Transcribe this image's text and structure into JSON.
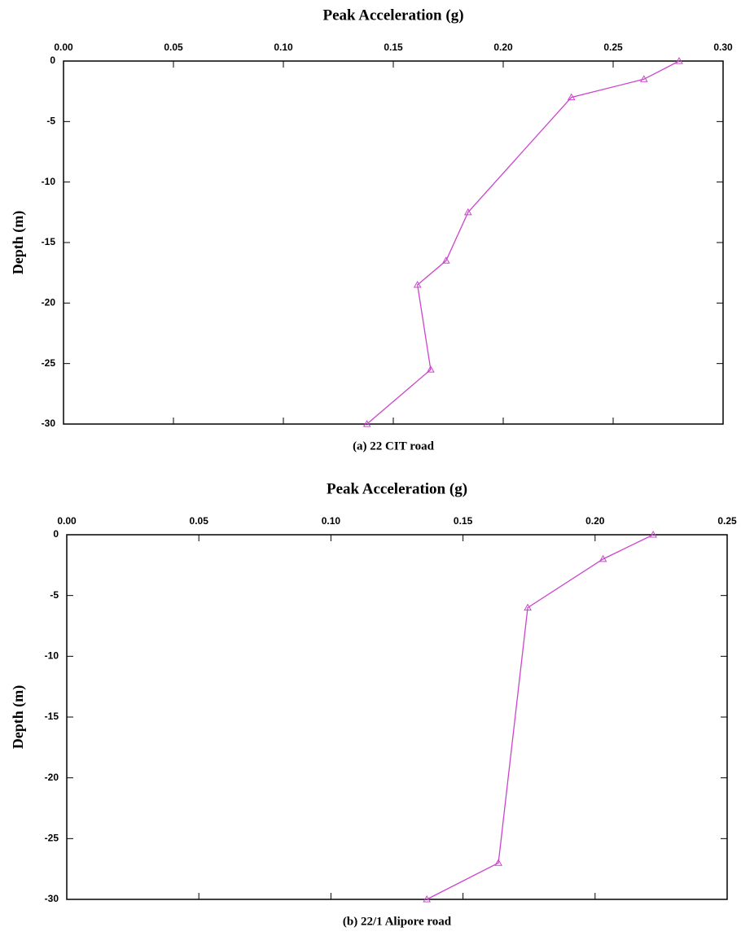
{
  "chart_data": [
    {
      "type": "line",
      "title": "Peak Acceleration (g)",
      "ylabel": "Depth (m)",
      "caption": "(a) 22 CIT road",
      "x": [
        0.28,
        0.264,
        0.231,
        0.184,
        0.174,
        0.161,
        0.167,
        0.138
      ],
      "values": [
        0,
        -1.5,
        -3,
        -12.5,
        -16.5,
        -18.5,
        -25.5,
        -30
      ],
      "color": "#cc44cc",
      "xlim": [
        0,
        0.3
      ],
      "ylim": [
        -30,
        0
      ],
      "xticks": [
        {
          "value": 0,
          "label": "0.00"
        },
        {
          "value": 0.05,
          "label": "0.05"
        },
        {
          "value": 0.1,
          "label": "0.10"
        },
        {
          "value": 0.15,
          "label": "0.15"
        },
        {
          "value": 0.2,
          "label": "0.20"
        },
        {
          "value": 0.25,
          "label": "0.25"
        },
        {
          "value": 0.3,
          "label": "0.30"
        }
      ],
      "yticks": [
        0,
        -5,
        -10,
        -15,
        -20,
        -25,
        -30
      ]
    },
    {
      "type": "line",
      "title": "Peak Acceleration (g)",
      "ylabel": "Depth (m)",
      "caption": "(b) 22/1 Alipore road",
      "x": [
        0.222,
        0.203,
        0.1745,
        0.1634,
        0.1363
      ],
      "values": [
        0,
        -2,
        -6,
        -27,
        -30
      ],
      "color": "#cc44cc",
      "xlim": [
        0,
        0.25
      ],
      "ylim": [
        -30,
        0
      ],
      "xticks": [
        {
          "value": 0,
          "label": "0.00"
        },
        {
          "value": 0.05,
          "label": "0.05"
        },
        {
          "value": 0.1,
          "label": "0.10"
        },
        {
          "value": 0.15,
          "label": "0.15"
        },
        {
          "value": 0.2,
          "label": "0.20"
        },
        {
          "value": 0.25,
          "label": "0.25"
        }
      ],
      "yticks": [
        0,
        -5,
        -10,
        -15,
        -20,
        -25,
        -30
      ]
    }
  ]
}
